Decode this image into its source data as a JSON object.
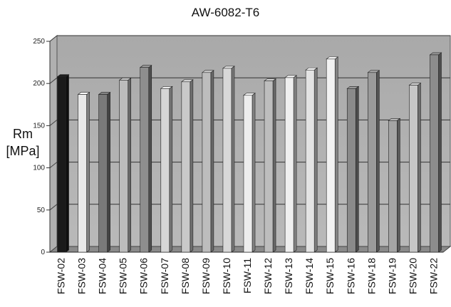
{
  "chart_data": {
    "type": "bar",
    "title": "AW-6082-T6",
    "ylabel_line1": "Rm",
    "ylabel_line2": "[MPa]",
    "xlabel": "",
    "ylim": [
      0,
      250
    ],
    "yticks": [
      0,
      50,
      100,
      150,
      200,
      250
    ],
    "grid": true,
    "categories": [
      "FSW-02",
      "FSW-03",
      "FSW-04",
      "FSW-05",
      "FSW-06",
      "FSW-07",
      "FSW-08",
      "FSW-09",
      "FSW-10",
      "FSW-11",
      "FSW-12",
      "FSW-13",
      "FSW-14",
      "FSW-15",
      "FSW-16",
      "FSW-18",
      "FSW-19",
      "FSW-20",
      "FSW-22"
    ],
    "values": [
      208,
      187,
      187,
      204,
      219,
      194,
      202,
      213,
      218,
      186,
      203,
      207,
      216,
      229,
      194,
      213,
      156,
      198,
      234
    ],
    "bar_colors": [
      "#1a1a1a",
      "#e8e8e8",
      "#7a7a7a",
      "#bcbcbc",
      "#8e8e8e",
      "#d6d6d6",
      "#c9c9c9",
      "#bdbdbd",
      "#d8d8d8",
      "#ededed",
      "#bdbdbd",
      "#efefef",
      "#e3e3e3",
      "#f2f2f2",
      "#8a8a8a",
      "#9a9a9a",
      "#a5a5a5",
      "#c6c6c6",
      "#8c8c8c"
    ]
  }
}
